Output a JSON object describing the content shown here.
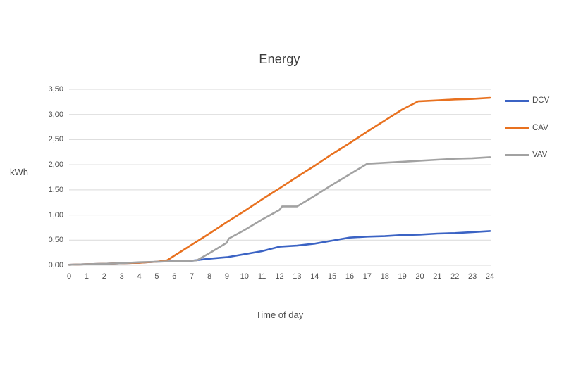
{
  "chart_data": {
    "type": "line",
    "title": "Energy",
    "xlabel": "Time of day",
    "ylabel": "kWh",
    "xlim": [
      0,
      24
    ],
    "ylim": [
      0,
      3.5
    ],
    "grid": true,
    "legend_position": "right",
    "decimal_separator": ",",
    "x_ticks": [
      0,
      1,
      2,
      3,
      4,
      5,
      6,
      7,
      8,
      9,
      10,
      11,
      12,
      13,
      14,
      15,
      16,
      17,
      18,
      19,
      20,
      21,
      22,
      23,
      24
    ],
    "y_tick_values": [
      3.5,
      3.0,
      2.5,
      2.0,
      1.5,
      1.0,
      0.5,
      0.0
    ],
    "y_tick_labels": [
      "3,50",
      "3,00",
      "2,50",
      "2,00",
      "1,50",
      "1,00",
      "0,50",
      "0,00"
    ],
    "colors": {
      "gridline": "#d9d9d9",
      "text": "#4a4a4a",
      "dcv_blue": "#3b63c4",
      "cav_orange": "#e8711f",
      "vav_gray": "#a2a2a2"
    },
    "series": [
      {
        "name": "DCV",
        "color": "#3b63c4",
        "points": [
          [
            0,
            0.01
          ],
          [
            1,
            0.02
          ],
          [
            2,
            0.03
          ],
          [
            3,
            0.04
          ],
          [
            4,
            0.05
          ],
          [
            5,
            0.07
          ],
          [
            6,
            0.08
          ],
          [
            7,
            0.09
          ],
          [
            8,
            0.13
          ],
          [
            9,
            0.16
          ],
          [
            10,
            0.22
          ],
          [
            11,
            0.28
          ],
          [
            12,
            0.37
          ],
          [
            13,
            0.39
          ],
          [
            14,
            0.43
          ],
          [
            15,
            0.49
          ],
          [
            16,
            0.55
          ],
          [
            17,
            0.57
          ],
          [
            18,
            0.58
          ],
          [
            19,
            0.6
          ],
          [
            20,
            0.61
          ],
          [
            21,
            0.63
          ],
          [
            22,
            0.64
          ],
          [
            23,
            0.66
          ],
          [
            24,
            0.68
          ]
        ]
      },
      {
        "name": "CAV",
        "color": "#e8711f",
        "points": [
          [
            0,
            0.01
          ],
          [
            1,
            0.02
          ],
          [
            2,
            0.03
          ],
          [
            3,
            0.04
          ],
          [
            4,
            0.05
          ],
          [
            5,
            0.07
          ],
          [
            5.6,
            0.1
          ],
          [
            6,
            0.19
          ],
          [
            7,
            0.41
          ],
          [
            8,
            0.63
          ],
          [
            9,
            0.86
          ],
          [
            10,
            1.08
          ],
          [
            11,
            1.31
          ],
          [
            12,
            1.53
          ],
          [
            13,
            1.76
          ],
          [
            14,
            1.98
          ],
          [
            15,
            2.21
          ],
          [
            16,
            2.43
          ],
          [
            17,
            2.66
          ],
          [
            18,
            2.88
          ],
          [
            19,
            3.1
          ],
          [
            19.9,
            3.26
          ],
          [
            21,
            3.28
          ],
          [
            22,
            3.3
          ],
          [
            23,
            3.31
          ],
          [
            24,
            3.33
          ]
        ]
      },
      {
        "name": "VAV",
        "color": "#a2a2a2",
        "points": [
          [
            0,
            0.01
          ],
          [
            1,
            0.02
          ],
          [
            2,
            0.03
          ],
          [
            3,
            0.04
          ],
          [
            4,
            0.06
          ],
          [
            5,
            0.07
          ],
          [
            6,
            0.08
          ],
          [
            7,
            0.09
          ],
          [
            7.3,
            0.1
          ],
          [
            8,
            0.24
          ],
          [
            9,
            0.45
          ],
          [
            9.1,
            0.53
          ],
          [
            10,
            0.7
          ],
          [
            11,
            0.91
          ],
          [
            12,
            1.1
          ],
          [
            12.15,
            1.17
          ],
          [
            13,
            1.17
          ],
          [
            14,
            1.38
          ],
          [
            15,
            1.6
          ],
          [
            16,
            1.81
          ],
          [
            17,
            2.02
          ],
          [
            18,
            2.04
          ],
          [
            19,
            2.06
          ],
          [
            20,
            2.08
          ],
          [
            21,
            2.1
          ],
          [
            22,
            2.12
          ],
          [
            23,
            2.13
          ],
          [
            24,
            2.15
          ]
        ]
      }
    ]
  }
}
